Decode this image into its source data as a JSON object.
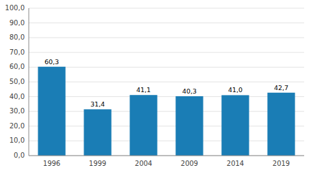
{
  "chart_data": {
    "type": "bar",
    "categories": [
      "1996",
      "1999",
      "2004",
      "2009",
      "2014",
      "2019"
    ],
    "values": [
      60.3,
      31.4,
      41.1,
      40.3,
      41.0,
      42.7
    ],
    "value_labels": [
      "60,3",
      "31,4",
      "41,1",
      "40,3",
      "41,0",
      "42,7"
    ],
    "color": "#1a7db5",
    "ylim": [
      0,
      100
    ],
    "yticks": [
      {
        "value": 0,
        "label": "0,0"
      },
      {
        "value": 10,
        "label": "10,0"
      },
      {
        "value": 20,
        "label": "20,0"
      },
      {
        "value": 30,
        "label": "30,0"
      },
      {
        "value": 40,
        "label": "40,0"
      },
      {
        "value": 50,
        "label": "50,0"
      },
      {
        "value": 60,
        "label": "60,0"
      },
      {
        "value": 70,
        "label": "70,0"
      },
      {
        "value": 80,
        "label": "80,0"
      },
      {
        "value": 90,
        "label": "90,0"
      },
      {
        "value": 100,
        "label": "100,0"
      }
    ],
    "grid": true,
    "data_labels": true
  }
}
